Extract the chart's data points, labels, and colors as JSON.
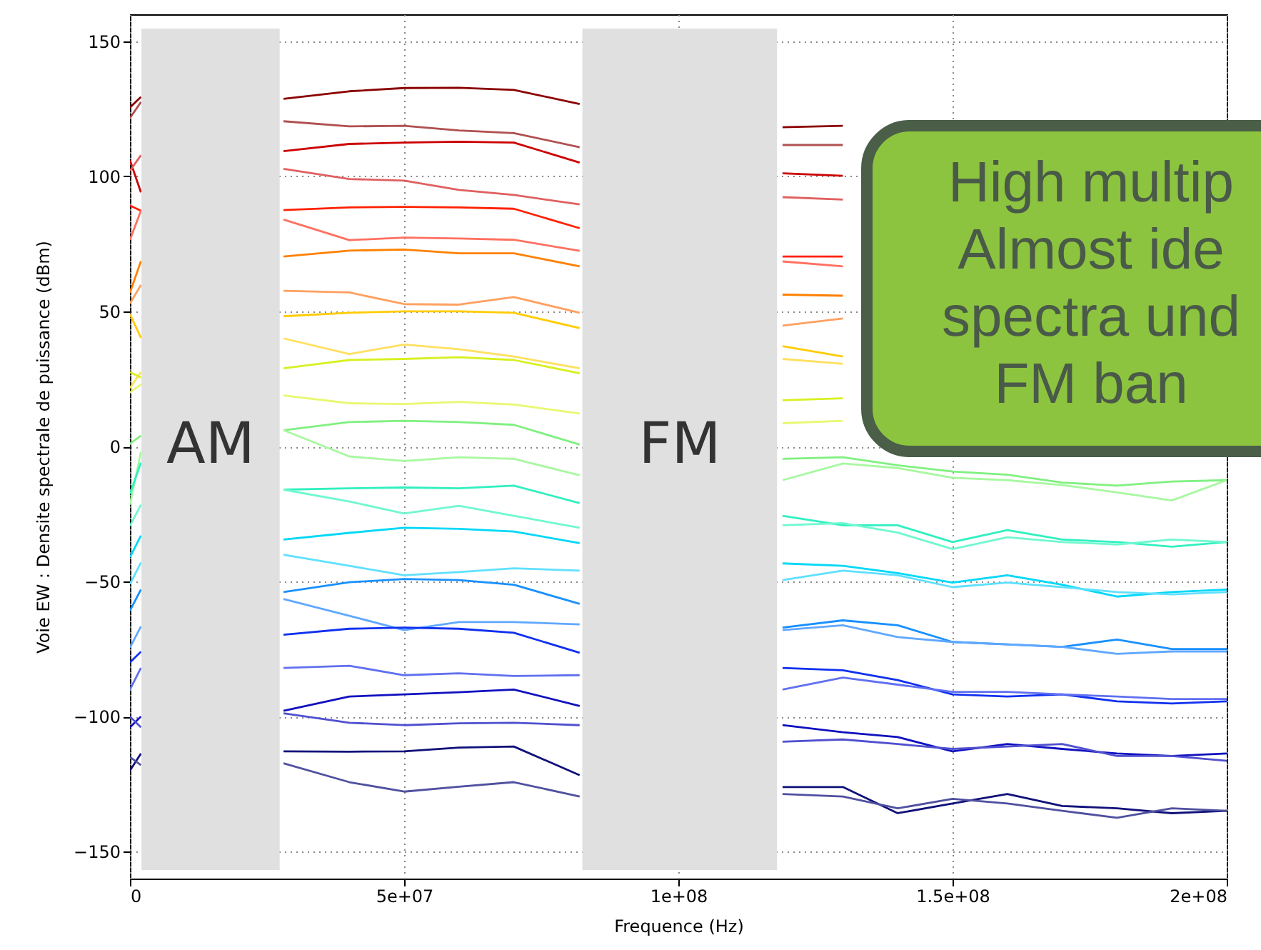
{
  "chart_data": {
    "type": "line",
    "xlabel": "Frequence (Hz)",
    "ylabel": "Voie EW : Densite spectrale de puissance (dBm)",
    "x": [
      0,
      2000000,
      15000000,
      28000000,
      40000000,
      50000000,
      60000000,
      70000000,
      82000000,
      100000000,
      119000000,
      130000000,
      140000000,
      150000000,
      160000000,
      170000000,
      180000000,
      190000000,
      200000000
    ],
    "xlim": [
      0,
      200000000
    ],
    "ylim": [
      -160,
      160
    ],
    "xticks": [
      0,
      {
        "value": 50000000,
        "label": "5e+07"
      },
      {
        "value": 100000000,
        "label": "1e+08"
      },
      {
        "value": 150000000,
        "label": "1.5e+08"
      },
      {
        "value": 200000000,
        "label": "2e+08"
      }
    ],
    "yticks": [
      -150,
      -100,
      -50,
      0,
      50,
      100,
      150
    ],
    "grid": true,
    "marker": "none",
    "line_style": "solid",
    "series": [
      {
        "color": "#8b0000",
        "values": [
          125.5,
          129.4,
          null,
          128.7,
          131.5,
          132.7,
          132.8,
          132,
          126.8,
          null,
          118.2,
          118.7,
          null,
          null,
          null,
          null,
          null,
          null,
          null
        ]
      },
      {
        "color": "#b05050",
        "values": [
          121.6,
          127.5,
          null,
          120.4,
          118.5,
          118.7,
          117,
          116,
          110.8,
          null,
          111.6,
          111.6,
          null,
          null,
          null,
          null,
          null,
          null,
          null
        ]
      },
      {
        "color": "#cc0000",
        "values": [
          105.9,
          94.1,
          null,
          109.3,
          112,
          112.5,
          112.8,
          112.5,
          105.1,
          null,
          101.1,
          100.2,
          null,
          null,
          null,
          null,
          null,
          null,
          null
        ]
      },
      {
        "color": "#e06060",
        "values": [
          102,
          107.8,
          null,
          102.8,
          99,
          98.4,
          95,
          93.1,
          89.6,
          null,
          92.3,
          91.4,
          null,
          null,
          null,
          null,
          null,
          null,
          null
        ]
      },
      {
        "color": "#ff2000",
        "values": [
          89.2,
          87.3,
          null,
          87.5,
          88.5,
          88.7,
          88.5,
          88,
          80.8,
          null,
          70.3,
          70.3,
          null,
          null,
          null,
          null,
          null,
          null,
          null
        ]
      },
      {
        "color": "#ff7060",
        "values": [
          76.5,
          87.3,
          null,
          84,
          76.4,
          77.3,
          77,
          76.5,
          72.4,
          null,
          68.5,
          66.7,
          null,
          null,
          null,
          null,
          null,
          null,
          null
        ]
      },
      {
        "color": "#ff8000",
        "values": [
          56.9,
          68.6,
          null,
          70.3,
          72.5,
          72.9,
          71.5,
          71.5,
          66.7,
          null,
          56.2,
          55.8,
          null,
          null,
          null,
          null,
          null,
          null,
          null
        ]
      },
      {
        "color": "#ffa060",
        "values": [
          52.9,
          59.8,
          null,
          57.6,
          57,
          52.7,
          52.5,
          55.3,
          49.5,
          null,
          44.7,
          47.4,
          null,
          null,
          null,
          null,
          null,
          null,
          null
        ]
      },
      {
        "color": "#ffcc00",
        "values": [
          49,
          40.2,
          null,
          48.2,
          49.5,
          50,
          50,
          49.5,
          43.8,
          null,
          37.1,
          33.3,
          null,
          null,
          null,
          null,
          null,
          null,
          null
        ]
      },
      {
        "color": "#ffe060",
        "values": [
          21.6,
          27.5,
          null,
          40,
          34.2,
          37.7,
          36,
          33.3,
          28.9,
          null,
          32.4,
          30.6,
          null,
          null,
          null,
          null,
          null,
          null,
          null
        ]
      },
      {
        "color": "#d8f020",
        "values": [
          27.5,
          25.5,
          null,
          28.9,
          32,
          32.4,
          33,
          32,
          27.1,
          null,
          17.1,
          17.8,
          null,
          null,
          null,
          null,
          null,
          null,
          null
        ]
      },
      {
        "color": "#e8f870",
        "values": [
          20,
          23,
          null,
          18.9,
          16,
          15.7,
          16.5,
          15.5,
          12.2,
          null,
          8.6,
          9.5,
          null,
          null,
          null,
          null,
          null,
          null,
          null
        ]
      },
      {
        "color": "#80f080",
        "values": [
          1,
          4,
          null,
          6,
          9,
          9.5,
          9,
          8,
          0.7,
          null,
          -4.6,
          -4,
          -7,
          -9.3,
          -10.5,
          -13.4,
          -14.5,
          -13,
          -12.5
        ]
      },
      {
        "color": "#a8f8a0",
        "values": [
          -21.6,
          -2,
          null,
          6,
          -3.7,
          -5.4,
          -4,
          -4.6,
          -10.7,
          null,
          -12.5,
          -6.3,
          -8,
          -11.6,
          -12.5,
          -14.3,
          -17,
          -20,
          -12.5
        ]
      },
      {
        "color": "#30f0c0",
        "values": [
          -17.6,
          -6,
          null,
          -16,
          -15.5,
          -15.2,
          -15.5,
          -14.5,
          -21,
          null,
          -25.7,
          -29.2,
          -29.2,
          -35.4,
          -31,
          -34.5,
          -35.4,
          -37.1,
          -35.4
        ]
      },
      {
        "color": "#70f8d0",
        "values": [
          -29.4,
          -21.6,
          null,
          -16,
          -20.4,
          -24.8,
          -22,
          -25.7,
          -30.1,
          null,
          -29.2,
          -28.4,
          -31.9,
          -38,
          -33.6,
          -35.4,
          -36.3,
          -34.5,
          -35.4
        ]
      },
      {
        "color": "#00d8f8",
        "values": [
          -41,
          -33,
          null,
          -34.5,
          -32,
          -30.1,
          -30.5,
          -31.5,
          -35.8,
          null,
          -43.3,
          -44.2,
          -46.9,
          -50.4,
          -47.7,
          -51.2,
          -55.6,
          -53.9,
          -53
        ]
      },
      {
        "color": "#60e0ff",
        "values": [
          -51,
          -43,
          null,
          -40.1,
          -44.2,
          -47.7,
          -46.5,
          -45.1,
          -46,
          null,
          -49.5,
          -46,
          -47.7,
          -52.1,
          -50.4,
          -52.1,
          -53.9,
          -54.8,
          -53.9
        ]
      },
      {
        "color": "#1890ff",
        "values": [
          -60.8,
          -53,
          null,
          -53.9,
          -50.3,
          -49.1,
          -49.5,
          -51.2,
          -58.3,
          null,
          -67.1,
          -64.4,
          -66.2,
          -72.4,
          -73.3,
          -74.2,
          -71.5,
          -75,
          -75
        ]
      },
      {
        "color": "#60a8ff",
        "values": [
          -74.5,
          -66.7,
          null,
          -56.5,
          -62.7,
          -68,
          -65,
          -65,
          -65.9,
          null,
          -68,
          -66.2,
          -70.6,
          -72.4,
          -73.3,
          -74.2,
          -76.8,
          -75.9,
          -75.9
        ]
      },
      {
        "color": "#1030f0",
        "values": [
          -80,
          -76,
          null,
          -69.7,
          -67.5,
          -67.1,
          -67.5,
          -69,
          -76.4,
          null,
          -82,
          -82.9,
          -86.5,
          -91.8,
          -92.6,
          -91.8,
          -94.4,
          -95.2,
          -94.4
        ]
      },
      {
        "color": "#6070f0",
        "values": [
          -90,
          -82,
          null,
          -82,
          -81.2,
          -84.7,
          -84,
          -85,
          -84.7,
          null,
          -90,
          -85.6,
          -88.2,
          -90.9,
          -90.9,
          -91.8,
          -92.6,
          -93.5,
          -93.5
        ]
      },
      {
        "color": "#1010c0",
        "values": [
          -104,
          -100,
          null,
          -97.9,
          -92.6,
          -91.8,
          -91,
          -90,
          -96.1,
          null,
          -103.2,
          -105.8,
          -107.6,
          -112.9,
          -110.2,
          -112,
          -113.7,
          -114.6,
          -113.7
        ]
      },
      {
        "color": "#5050d0",
        "values": [
          -100,
          -104,
          null,
          -98.8,
          -102.3,
          -103.2,
          -102.5,
          -102.3,
          -103.2,
          null,
          -109.3,
          -108.5,
          -110.2,
          -112,
          -111.1,
          -110.2,
          -114.6,
          -114.6,
          -116.4
        ]
      },
      {
        "color": "#10107a",
        "values": [
          -120,
          -113.7,
          null,
          -112.9,
          -113,
          -112.9,
          -111.5,
          -111.1,
          -121.7,
          null,
          -126.1,
          -126.1,
          -135.8,
          -132.2,
          -128.7,
          -133.1,
          -134,
          -135.8,
          -134.9
        ]
      },
      {
        "color": "#5050a0",
        "values": [
          -115,
          -118,
          null,
          -117.3,
          -124.3,
          -127.8,
          -126,
          -124.3,
          -129.6,
          null,
          -128.7,
          -129.6,
          -134,
          -130.5,
          -132.2,
          -134.9,
          -137.5,
          -134,
          -134.9
        ]
      }
    ],
    "bands": [
      {
        "axis": "x",
        "from": 2100000,
        "to": 27300000,
        "label": "AM",
        "color": "#e0e0e0"
      },
      {
        "axis": "x",
        "from": 82500000,
        "to": 118000000,
        "label": "FM",
        "color": "#e0e0e0"
      }
    ],
    "annotations": [
      "High multip\nAlmost ide\nspectra und\nFM ban"
    ]
  }
}
